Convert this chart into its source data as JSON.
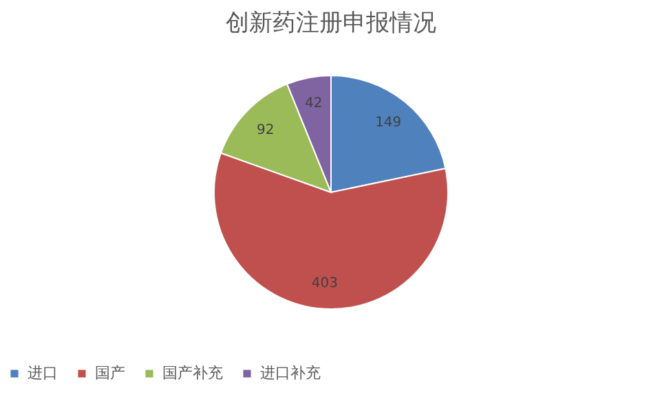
{
  "chart_data": {
    "type": "pie",
    "title": "创新药注册申报情况",
    "categories": [
      "进口",
      "国产",
      "国产补充",
      "进口补充"
    ],
    "values": [
      149,
      403,
      92,
      42
    ],
    "colors": [
      "#4f81bd",
      "#c0504d",
      "#9bbb59",
      "#8064a2"
    ],
    "data_labels": true,
    "legend": "bottom"
  }
}
